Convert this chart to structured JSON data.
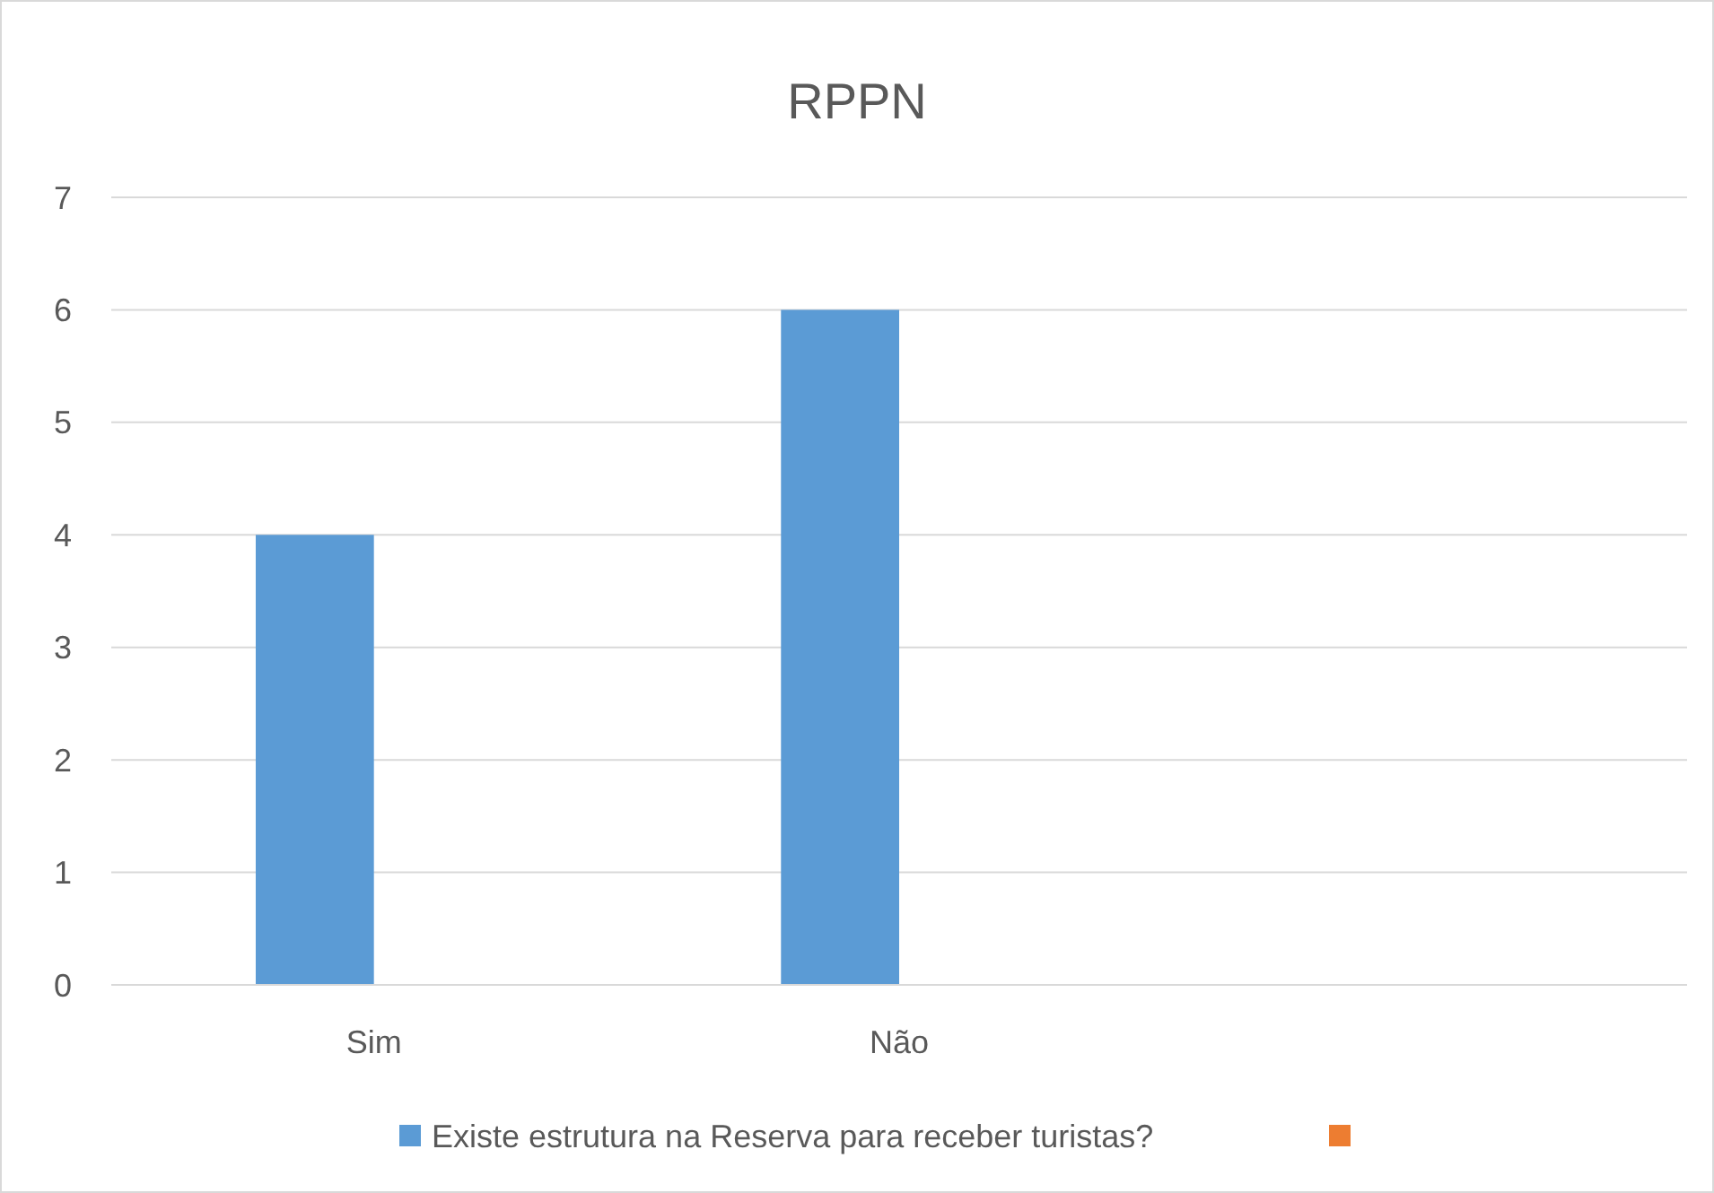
{
  "chart_data": {
    "type": "bar",
    "title": "RPPN",
    "categories": [
      "Sim",
      "Não",
      null
    ],
    "series": [
      {
        "name": "Existe estrutura na Reserva para receber turistas?",
        "color": "#5b9bd5",
        "values": [
          4,
          6,
          null
        ]
      },
      {
        "color": "#ed7d31",
        "values": [
          null,
          null,
          null
        ]
      }
    ],
    "ylim": [
      0,
      7
    ],
    "yticks": [
      0,
      1,
      2,
      3,
      4,
      5,
      6,
      7
    ],
    "grid": "y",
    "legend": "bottom"
  }
}
